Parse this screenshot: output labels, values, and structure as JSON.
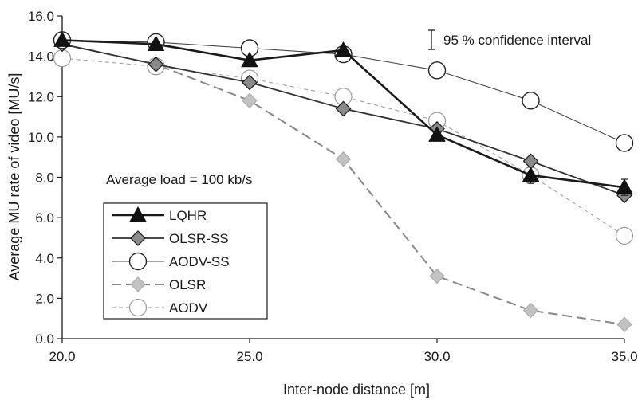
{
  "chart_data": {
    "type": "line",
    "xlabel": "Inter-node distance [m]",
    "ylabel": "Average MU rate of video [MU/s]",
    "xlim": [
      20,
      35
    ],
    "ylim": [
      0,
      16
    ],
    "x_ticks": [
      20,
      25,
      30,
      35
    ],
    "x_tick_labels": [
      "20.0",
      "25.0",
      "30.0",
      "35.0"
    ],
    "y_ticks": [
      0,
      2,
      4,
      6,
      8,
      10,
      12,
      14,
      16
    ],
    "y_tick_labels": [
      "0.0",
      "2.0",
      "4.0",
      "6.0",
      "8.0",
      "10.0",
      "12.0",
      "14.0",
      "16.0"
    ],
    "x": [
      20,
      22.5,
      25,
      27.5,
      30,
      32.5,
      35
    ],
    "grid": false,
    "legend_position": "bottom-left",
    "annotations": {
      "confidence": "95 % confidence interval",
      "load": "Average load = 100 kb/s"
    },
    "series": [
      {
        "name": "LQHR",
        "values": [
          14.8,
          14.6,
          13.8,
          14.3,
          10.1,
          8.1,
          7.5
        ],
        "color": "#1a1a1a",
        "marker": "triangle",
        "dash": "solid",
        "error": [
          0,
          0,
          0,
          0,
          0,
          0.4,
          0.4
        ]
      },
      {
        "name": "OLSR-SS",
        "values": [
          14.6,
          13.6,
          12.7,
          11.4,
          10.4,
          8.8,
          7.1
        ],
        "color": "#333333",
        "marker": "diamond",
        "dash": "solid"
      },
      {
        "name": "AODV-SS",
        "values": [
          14.8,
          14.7,
          14.4,
          14.1,
          13.3,
          11.8,
          9.7
        ],
        "color": "#444444",
        "marker": "circle-open",
        "dash": "solid"
      },
      {
        "name": "OLSR",
        "values": [
          14.6,
          13.6,
          11.8,
          8.9,
          3.1,
          1.4,
          0.7
        ],
        "color": "#888888",
        "marker": "diamond-light",
        "dash": "long-dash"
      },
      {
        "name": "AODV",
        "values": [
          13.9,
          13.5,
          12.9,
          12.0,
          10.8,
          8.1,
          5.1
        ],
        "color": "#999999",
        "marker": "circle-light",
        "dash": "short-dash"
      }
    ]
  }
}
